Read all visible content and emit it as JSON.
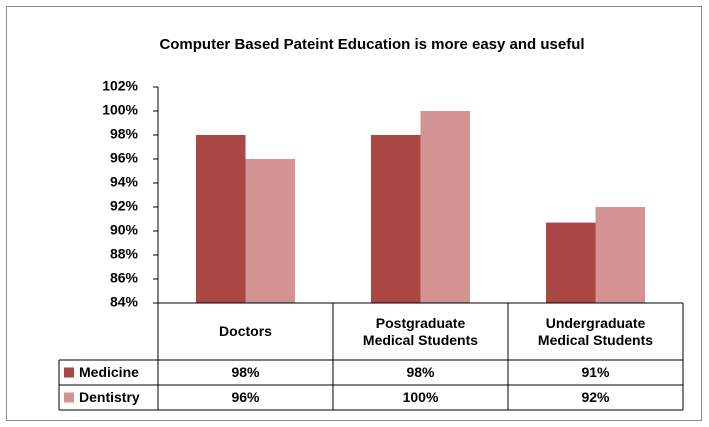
{
  "chart_data": {
    "type": "bar",
    "title": "Computer Based Pateint Education is more easy and useful",
    "categories": [
      "Doctors",
      "Postgraduate Medical Students",
      "Undergraduate Medical Students"
    ],
    "series": [
      {
        "name": "Medicine",
        "color": "#aa4643",
        "values": [
          98,
          98,
          90.7
        ],
        "value_labels": [
          "98%",
          "98%",
          "91%"
        ]
      },
      {
        "name": "Dentistry",
        "color": "#d39392",
        "values": [
          96,
          100,
          92
        ],
        "value_labels": [
          "96%",
          "100%",
          "92%"
        ]
      }
    ],
    "ylim": [
      84,
      102
    ],
    "yticks": [
      {
        "value": 84,
        "label": "84%"
      },
      {
        "value": 86,
        "label": "86%"
      },
      {
        "value": 88,
        "label": "88%"
      },
      {
        "value": 90,
        "label": "90%"
      },
      {
        "value": 92,
        "label": "92%"
      },
      {
        "value": 94,
        "label": "94%"
      },
      {
        "value": 96,
        "label": "96%"
      },
      {
        "value": 98,
        "label": "98%"
      },
      {
        "value": 100,
        "label": "100%"
      },
      {
        "value": 102,
        "label": "102%"
      }
    ],
    "data_table": true
  }
}
